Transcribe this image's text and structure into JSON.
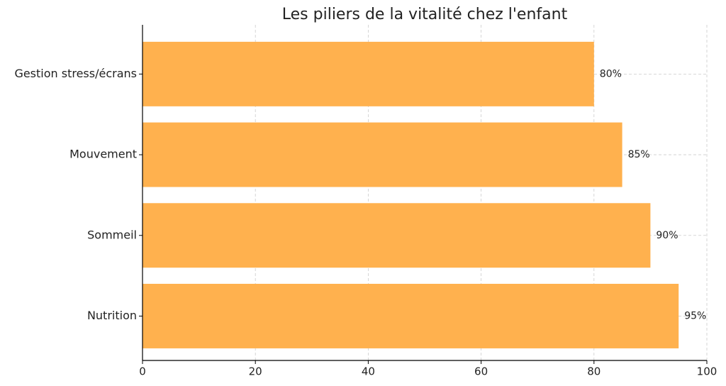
{
  "chart_data": {
    "type": "barh",
    "title": "Les piliers de la vitalité chez l'enfant",
    "categories": [
      "Nutrition",
      "Sommeil",
      "Mouvement",
      "Gestion stress/écrans"
    ],
    "values": [
      95,
      90,
      85,
      80
    ],
    "value_labels": [
      "95%",
      "90%",
      "85%",
      "80%"
    ],
    "color": "#ffb14e",
    "xlim": [
      0,
      100
    ],
    "xticks": [
      0,
      20,
      40,
      60,
      80,
      100
    ],
    "grid": true
  }
}
